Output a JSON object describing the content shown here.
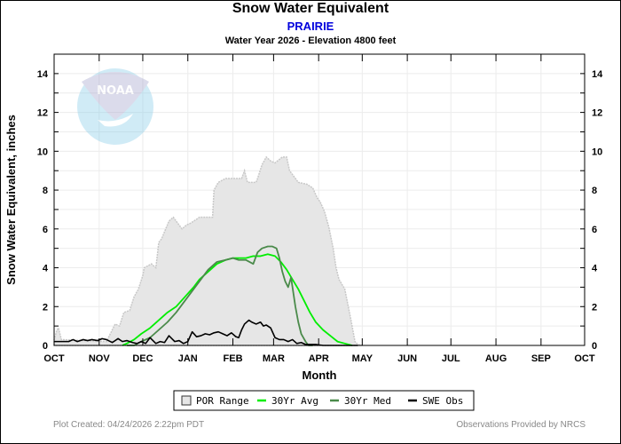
{
  "header": {
    "title": "Snow Water Equivalent",
    "station": "PRAIRIE",
    "subtitle": "Water Year 2026 -  Elevation 4800 feet"
  },
  "footer": {
    "left": "Plot Created: 04/24/2026 2:22pm PDT",
    "right": "Observations Provided by NRCS"
  },
  "logo": {
    "text": "NOAA"
  },
  "colors": {
    "por_fill": "#e6e6e6",
    "por_edge": "#c8c8c8",
    "avg": "#00ee00",
    "med": "#4a8a4a",
    "obs": "#000000",
    "station": "#0000dd"
  },
  "chart_data": {
    "type": "area",
    "title": "Snow Water Equivalent",
    "xlabel": "Month",
    "ylabel": "Snow Water Equivalent, inches",
    "x_units": "day of water year (0 = Oct 1)",
    "xlim": [
      0,
      365
    ],
    "ylim": [
      0,
      15
    ],
    "yticks": [
      0,
      2,
      4,
      6,
      8,
      10,
      12,
      14
    ],
    "ytick_labels": [
      "0",
      "2",
      "4",
      "6",
      "8",
      "10",
      "12",
      "14"
    ],
    "xticks": [
      0,
      31,
      61,
      92,
      123,
      151,
      182,
      212,
      243,
      273,
      304,
      335,
      365
    ],
    "xtick_labels": [
      "OCT",
      "NOV",
      "DEC",
      "JAN",
      "FEB",
      "MAR",
      "APR",
      "MAY",
      "JUN",
      "JUL",
      "AUG",
      "SEP",
      "OCT"
    ],
    "grid": true,
    "legend_position": "bottom",
    "legend": [
      "POR Range",
      "30Yr Avg",
      "30Yr Med",
      "SWE Obs"
    ],
    "series": [
      {
        "name": "POR Range",
        "kind": "range",
        "x": [
          0,
          2,
          3,
          5,
          36,
          42,
          45,
          48,
          52,
          55,
          58,
          61,
          62,
          67,
          70,
          72,
          74,
          79,
          82,
          88,
          91,
          94,
          100,
          105,
          109,
          110,
          113,
          118,
          129,
          131,
          133,
          139,
          140,
          143,
          146,
          149,
          152,
          157,
          160,
          162,
          165,
          168,
          174,
          178,
          181,
          183,
          186,
          189,
          192,
          194,
          196,
          200,
          204,
          206,
          207,
          209,
          212
        ],
        "max": [
          0.3,
          0.8,
          0.9,
          0.3,
          0.2,
          1.1,
          1.0,
          1.7,
          1.8,
          2.5,
          2.9,
          3.6,
          4.0,
          4.2,
          4.0,
          5.3,
          5.5,
          6.4,
          6.6,
          6.0,
          6.2,
          6.3,
          6.6,
          6.6,
          6.6,
          8.0,
          8.4,
          8.6,
          8.6,
          9.0,
          8.4,
          8.4,
          8.6,
          9.3,
          9.7,
          9.5,
          9.4,
          9.7,
          9.7,
          9.0,
          8.7,
          8.4,
          8.3,
          8.1,
          7.6,
          7.4,
          6.9,
          6.1,
          5.0,
          4.0,
          3.4,
          2.9,
          1.4,
          0.6,
          0.2,
          0.05,
          0.0
        ],
        "min_note": "lower bound of range is 0 throughout"
      },
      {
        "name": "30Yr Avg",
        "x": [
          47,
          50,
          55,
          60,
          66,
          72,
          78,
          84,
          90,
          96,
          100,
          106,
          112,
          118,
          123,
          127,
          132,
          137,
          142,
          147,
          152,
          156,
          160,
          164,
          168,
          172,
          176,
          180,
          185,
          190,
          195,
          200,
          205
        ],
        "values": [
          0.0,
          0.1,
          0.3,
          0.6,
          0.9,
          1.3,
          1.7,
          2.0,
          2.5,
          3.0,
          3.4,
          3.8,
          4.2,
          4.4,
          4.5,
          4.5,
          4.5,
          4.6,
          4.6,
          4.7,
          4.6,
          4.3,
          3.9,
          3.4,
          2.9,
          2.3,
          1.7,
          1.2,
          0.8,
          0.5,
          0.2,
          0.1,
          0.0
        ],
        "color": "#00ee00"
      },
      {
        "name": "30Yr Med",
        "x": [
          50,
          55,
          60,
          66,
          72,
          78,
          84,
          90,
          96,
          100,
          106,
          112,
          118,
          123,
          127,
          132,
          137,
          140,
          143,
          147,
          150,
          153,
          155,
          157,
          159,
          161,
          163,
          164,
          166,
          168,
          170,
          173,
          175,
          178
        ],
        "values": [
          0.0,
          0.0,
          0.2,
          0.4,
          0.8,
          1.2,
          1.7,
          2.3,
          2.9,
          3.3,
          3.9,
          4.3,
          4.4,
          4.5,
          4.4,
          4.4,
          4.2,
          4.8,
          5.0,
          5.1,
          5.1,
          5.0,
          4.5,
          3.8,
          3.3,
          3.0,
          3.5,
          3.0,
          2.0,
          1.2,
          0.6,
          0.2,
          0.0,
          0.0
        ],
        "color": "#4a8a4a"
      },
      {
        "name": "SWE Obs",
        "x": [
          0,
          5,
          10,
          13,
          16,
          20,
          23,
          26,
          30,
          33,
          36,
          40,
          44,
          47,
          50,
          54,
          57,
          60,
          63,
          66,
          70,
          73,
          76,
          79,
          83,
          86,
          89,
          92,
          95,
          98,
          101,
          104,
          107,
          110,
          113,
          116,
          119,
          122,
          125,
          127,
          129,
          131,
          134,
          136,
          139,
          142,
          144,
          146,
          149,
          152,
          155,
          158,
          161,
          164,
          167,
          170,
          173,
          176,
          180,
          185,
          190,
          195,
          200,
          205,
          209
        ],
        "values": [
          0.2,
          0.2,
          0.2,
          0.3,
          0.2,
          0.3,
          0.25,
          0.3,
          0.25,
          0.35,
          0.3,
          0.15,
          0.35,
          0.2,
          0.25,
          0.15,
          0.1,
          0.2,
          0.1,
          0.4,
          0.1,
          0.2,
          0.15,
          0.5,
          0.2,
          0.25,
          0.1,
          0.2,
          0.7,
          0.45,
          0.5,
          0.6,
          0.55,
          0.65,
          0.7,
          0.6,
          0.5,
          0.65,
          0.45,
          0.4,
          0.8,
          1.1,
          1.3,
          1.2,
          1.1,
          1.2,
          1.0,
          1.05,
          0.9,
          0.4,
          0.3,
          0.3,
          0.2,
          0.3,
          0.1,
          0.15,
          0.05,
          0.05,
          0.05,
          0.0,
          0.0,
          0.0,
          0.0,
          0.0,
          0.0
        ],
        "color": "#000000"
      }
    ]
  }
}
